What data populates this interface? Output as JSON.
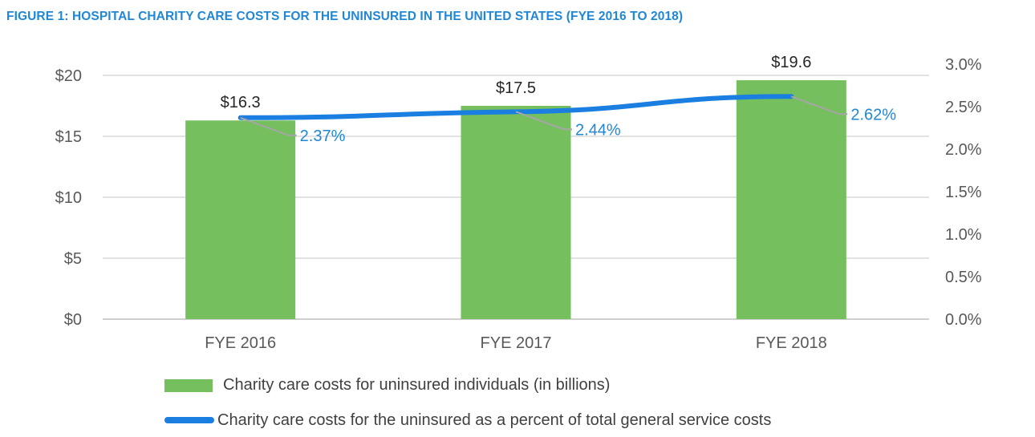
{
  "title": "FIGURE 1: HOSPITAL CHARITY CARE COSTS FOR THE UNINSURED IN THE UNITED STATES (FYE 2016 TO 2018)",
  "colors": {
    "bar": "#75bf5f",
    "line": "#1a7fe0",
    "pct_label": "#1f87d6",
    "title": "#1f87d6",
    "grid": "#d9d9d9",
    "leader": "#a6a6a6"
  },
  "chart_data": {
    "type": "bar",
    "categories": [
      "FYE 2016",
      "FYE 2017",
      "FYE 2018"
    ],
    "series": [
      {
        "name": "Charity care costs for uninsured individuals (in billions)",
        "type": "bar",
        "axis": "left",
        "values": [
          16.3,
          17.5,
          19.6
        ],
        "labels": [
          "$16.3",
          "$17.5",
          "$19.6"
        ]
      },
      {
        "name": "Charity care costs for the uninsured as a percent of total general service costs",
        "type": "line",
        "axis": "right",
        "values": [
          2.37,
          2.44,
          2.62
        ],
        "labels": [
          "2.37%",
          "2.44%",
          "2.62%"
        ]
      }
    ],
    "y_left": {
      "ticks": [
        "$0",
        "$5",
        "$10",
        "$15",
        "$20"
      ],
      "ylim": [
        0,
        20
      ]
    },
    "y_right": {
      "ticks": [
        "0.0%",
        "0.5%",
        "1.0%",
        "1.5%",
        "2.0%",
        "2.5%",
        "3.0%"
      ],
      "ylim": [
        0,
        3.0
      ]
    },
    "grid": true,
    "legend_position": "bottom"
  }
}
